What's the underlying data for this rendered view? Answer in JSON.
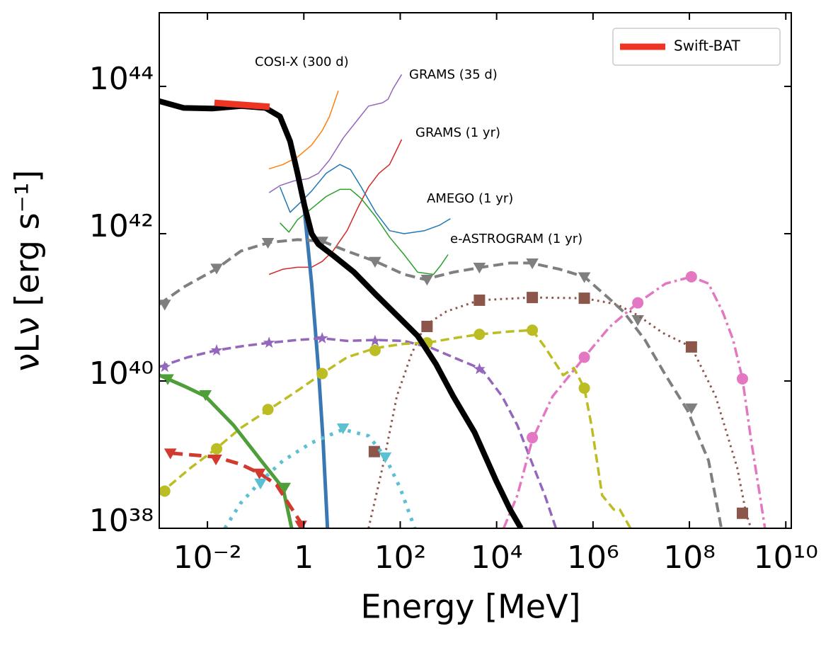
{
  "chart_data": {
    "type": "line",
    "xlabel": "Energy  [MeV]",
    "ylabel": "νLν  [erg s⁻¹]",
    "xscale": "log",
    "yscale": "log",
    "xlim": [
      0.001,
      13000000000
    ],
    "ylim": [
      1e+38,
      1e+45
    ],
    "xticks": [
      {
        "value": 0.01,
        "label": "10⁻²"
      },
      1,
      {
        "value": 100,
        "label": "10²"
      },
      {
        "value": 10000,
        "label": "10⁴"
      },
      {
        "value": 1000000,
        "label": "10⁶"
      },
      {
        "value": 100000000,
        "label": "10⁸"
      },
      {
        "value": 10000000000,
        "label": "10¹⁰"
      }
    ],
    "yticks": [
      {
        "value": 1e+38,
        "label": "10³⁸"
      },
      {
        "value": 1e+40,
        "label": "10⁴⁰"
      },
      {
        "value": 1e+42,
        "label": "10⁴²"
      },
      {
        "value": 1e+44,
        "label": "10⁴⁴"
      }
    ],
    "legend": "upper right",
    "annotations": [
      "COSI-X (300 d)",
      "GRAMS (35 d)",
      "GRAMS (1 yr)",
      "AMEGO (1 yr)",
      "e-ASTROGRAM (1 yr)"
    ],
    "series": [
      {
        "color": "#ff7f0e",
        "linestyle": "solid",
        "linewidth": 1.5,
        "x": [
          0.19,
          0.37,
          0.74,
          1.45,
          2.4,
          3.4,
          5.2
        ],
        "values": [
          7.6e+42,
          8.7e+42,
          1.1e+43,
          1.6e+43,
          2.5e+43,
          3.9e+43,
          8.7e+43
        ]
      },
      {
        "color": "#9467bd",
        "linestyle": "solid",
        "linewidth": 1.5,
        "x": [
          0.19,
          0.32,
          0.62,
          1.23,
          2.0,
          3.4,
          6.6,
          13,
          22,
          43,
          56,
          71,
          107
        ],
        "values": [
          3.6e+42,
          4.5e+42,
          5.2e+42,
          5.6e+42,
          6.6e+42,
          1e+43,
          2e+43,
          3.5e+43,
          5.4e+43,
          6e+43,
          6.7e+43,
          9.3e+43,
          1.45e+44
        ]
      },
      {
        "color": "#d62728",
        "linestyle": "solid",
        "linewidth": 1.5,
        "x": [
          0.19,
          0.37,
          0.74,
          1.45,
          2.4,
          4.0,
          7.9,
          13,
          22,
          36,
          60,
          107
        ],
        "values": [
          2.8e+41,
          3.3e+41,
          3.5e+41,
          3.5e+41,
          4.2e+41,
          5.8e+41,
          1.1e+42,
          2.2e+42,
          4.3e+42,
          6.6e+42,
          8.7e+42,
          1.9e+43
        ]
      },
      {
        "color": "#1f77b4",
        "linestyle": "solid",
        "linewidth": 1.5,
        "x": [
          0.32,
          0.52,
          0.87,
          1.45,
          2.9,
          5.6,
          9.3,
          15.5,
          31,
          60,
          120,
          320,
          650,
          1100
        ],
        "values": [
          4.3e+42,
          1.95e+42,
          2.7e+42,
          3.8e+42,
          6.6e+42,
          8.7e+42,
          7.4e+42,
          4.3e+42,
          1.95e+42,
          1.1e+42,
          1e+42,
          1.1e+42,
          1.3e+42,
          1.6e+42
        ]
      },
      {
        "color": "#2ca02c",
        "linestyle": "solid",
        "linewidth": 1.5,
        "x": [
          0.32,
          0.49,
          0.74,
          1.45,
          2.9,
          5.6,
          9.3,
          15.5,
          31,
          60,
          120,
          230,
          490,
          690,
          980
        ],
        "values": [
          1.4e+42,
          1.05e+42,
          1.55e+42,
          2.2e+42,
          3.2e+42,
          4e+42,
          4e+42,
          3e+42,
          1.7e+42,
          9e+41,
          5.2e+41,
          3e+41,
          2.8e+41,
          3.7e+41,
          5.2e+41
        ]
      },
      {
        "color": "#3a78b5",
        "linestyle": "solid",
        "linewidth": 5,
        "x": [
          0.97,
          1.45,
          2.0,
          2.5,
          3.1
        ],
        "values": [
          3e+42,
          2.1e+41,
          1.5e+40,
          1.6e+39,
          1e+38
        ]
      },
      {
        "color": "#7f7f7f",
        "linestyle": "dashed",
        "linewidth": 4,
        "x": [
          0.001,
          0.0033,
          0.015,
          0.049,
          0.19,
          0.74,
          2.4,
          7.9,
          31,
          120,
          320,
          1260,
          4900,
          19000,
          52000,
          200000,
          660000,
          2200000,
          4300000,
          12000000,
          32000000,
          91000000,
          250000000,
          460000000
        ],
        "values": [
          1.1e+41,
          1.9e+41,
          3.3e+41,
          5.8e+41,
          7.6e+41,
          8.3e+41,
          7.9e+41,
          5.8e+41,
          4.2e+41,
          2.8e+41,
          2.4e+41,
          3e+41,
          3.5e+41,
          4e+41,
          4e+41,
          3.3e+41,
          2.6e+41,
          1.3e+41,
          8.7e+40,
          3.6e+40,
          1.2e+40,
          4e+39,
          8.3e+38,
          1e+38
        ]
      },
      {
        "color": "#7f7f7f",
        "linestyle": "none",
        "marker": "v",
        "x": [
          0.0013,
          0.0155,
          0.18,
          2.4,
          30,
          360,
          4400,
          55000,
          660000,
          8500000,
          110000000
        ],
        "values": [
          1.1e+41,
          3.4e+41,
          7.6e+41,
          7.9e+41,
          4.2e+41,
          2.4e+41,
          3.5e+41,
          4e+41,
          2.6e+41,
          6.8e+40,
          4.3e+39
        ]
      },
      {
        "color": "#8c564b",
        "linestyle": "dotted",
        "linewidth": 3,
        "x": [
          22,
          43,
          85,
          170,
          320,
          910,
          4400,
          55000,
          660000,
          3100000,
          8500000,
          28000000,
          110000000,
          350000000,
          980000000,
          1500000000,
          1900000000
        ],
        "values": [
          1e+38,
          6.7e+38,
          6.2e+39,
          2.3e+40,
          5.6e+40,
          8.8e+40,
          1.25e+41,
          1.36e+41,
          1.33e+41,
          1.1e+41,
          7.8e+40,
          4.5e+40,
          2.9e+40,
          6.2e+39,
          6.7e+38,
          1.6e+38,
          1e+38
        ]
      },
      {
        "color": "#8c564b",
        "linestyle": "none",
        "marker": "s",
        "x": [
          29,
          360,
          4400,
          55000,
          660000,
          110000000,
          1260000000
        ],
        "values": [
          1.1e+39,
          5.5e+40,
          1.25e+41,
          1.36e+41,
          1.33e+41,
          2.9e+40,
          1.6e+38
        ]
      },
      {
        "color": "#9467bd",
        "linestyle": "dashed",
        "linewidth": 3.5,
        "x": [
          0.001,
          0.0039,
          0.015,
          0.058,
          0.19,
          0.74,
          2.4,
          7.9,
          31,
          120,
          450,
          1800,
          4900,
          13000,
          27000,
          52000,
          100000,
          170000
        ],
        "values": [
          1.55e+40,
          2.1e+40,
          2.6e+40,
          3e+40,
          3.3e+40,
          3.6e+40,
          3.8e+40,
          3.5e+40,
          3.6e+40,
          3.5e+40,
          2.8e+40,
          1.9e+40,
          1.45e+40,
          6.2e+39,
          2.5e+39,
          8.3e+38,
          2.8e+38,
          1e+38
        ]
      },
      {
        "color": "#9467bd",
        "linestyle": "none",
        "marker": "*",
        "x": [
          0.0013,
          0.0155,
          0.19,
          2.4,
          30,
          4400
        ],
        "values": [
          1.55e+40,
          2.6e+40,
          3.3e+40,
          3.8e+40,
          3.5e+40,
          1.45e+40
        ]
      },
      {
        "color": "#bcbd22",
        "linestyle": "dashed",
        "linewidth": 3.5,
        "x": [
          0.001,
          0.0046,
          0.015,
          0.049,
          0.19,
          0.74,
          2.4,
          7.9,
          31,
          120,
          360,
          1260,
          4400,
          19000,
          55000,
          100000,
          240000,
          400000,
          660000,
          930000,
          1550000,
          2700000,
          3600000,
          6000000
        ],
        "values": [
          2.9e+38,
          6.7e+38,
          1.2e+39,
          2.3e+39,
          4.1e+39,
          7.4e+39,
          1.26e+40,
          2.1e+40,
          2.8e+40,
          3.2e+40,
          3.3e+40,
          3.8e+40,
          4.3e+40,
          4.7e+40,
          4.9e+40,
          2.9e+40,
          1.2e+40,
          1.5e+40,
          8e+39,
          2.5e+39,
          2.8e+38,
          1.8e+38,
          1.8e+38,
          1e+38
        ]
      },
      {
        "color": "#bcbd22",
        "linestyle": "none",
        "marker": "o",
        "x": [
          0.0013,
          0.0155,
          0.18,
          2.4,
          30,
          360,
          4400,
          55000,
          660000
        ],
        "values": [
          3.2e+38,
          1.2e+39,
          4.1e+39,
          1.26e+40,
          2.6e+40,
          3.3e+40,
          4.3e+40,
          4.9e+40,
          8e+39
        ]
      },
      {
        "color": "#e377c2",
        "linestyle": "dashdot",
        "linewidth": 3.5,
        "x": [
          14000,
          27000,
          55000,
          145000,
          660000,
          2200000,
          8500000,
          32000000,
          110000000,
          250000000,
          490000000,
          810000000,
          1260000000,
          1900000000,
          2900000000,
          3700000000
        ],
        "values": [
          1e+38,
          2.8e+38,
          1.6e+39,
          6.2e+39,
          2.1e+40,
          5.4e+40,
          1.15e+41,
          2.1e+41,
          2.6e+41,
          2.1e+41,
          8.7e+40,
          3.6e+40,
          1.07e+40,
          1.6e+39,
          2.8e+38,
          1e+38
        ]
      },
      {
        "color": "#e377c2",
        "linestyle": "none",
        "marker": "o",
        "x": [
          55000,
          660000,
          8500000,
          110000000,
          1260000000
        ],
        "values": [
          1.7e+39,
          2.1e+40,
          1.15e+41,
          2.6e+41,
          1.07e+40
        ]
      },
      {
        "color": "#4e9e3a",
        "linestyle": "solid",
        "linewidth": 5,
        "x": [
          0.001,
          0.0033,
          0.0091,
          0.035,
          0.13,
          0.37,
          0.56
        ],
        "values": [
          1.2e+40,
          8.5e+39,
          6.2e+39,
          2.5e+39,
          8.3e+38,
          3.5e+38,
          1e+38
        ]
      },
      {
        "color": "#4e9e3a",
        "linestyle": "none",
        "marker": "v",
        "x": [
          0.0015,
          0.0091,
          0.4
        ],
        "values": [
          1.07e+40,
          6.5e+39,
          3.6e+38
        ]
      },
      {
        "color": "#d03a2f",
        "linestyle": "dashed",
        "linewidth": 5,
        "x": [
          0.0017,
          0.015,
          0.049,
          0.12,
          0.27,
          0.52,
          1.03
        ],
        "values": [
          1.05e+39,
          9.3e+38,
          7.4e+38,
          5.6e+38,
          3.9e+38,
          2e+38,
          1e+38
        ]
      },
      {
        "color": "#d03a2f",
        "linestyle": "none",
        "marker": "v",
        "x": [
          0.0017,
          0.015,
          0.12,
          0.87
        ],
        "values": [
          1.05e+39,
          8.7e+38,
          5.6e+38,
          1.1e+38
        ]
      },
      {
        "color": "#5bc0d1",
        "linestyle": "dotted",
        "linewidth": 5,
        "x": [
          0.023,
          0.049,
          0.126,
          0.37,
          1.45,
          6.5,
          22,
          49,
          100,
          200
        ],
        "values": [
          1e+38,
          2.2e+38,
          4.3e+38,
          8.3e+38,
          1.45e+39,
          2.2e+39,
          1.8e+39,
          9.3e+38,
          3.5e+38,
          1e+38
        ]
      },
      {
        "color": "#5bc0d1",
        "linestyle": "none",
        "marker": "v",
        "x": [
          0.126,
          6.5,
          49
        ],
        "values": [
          4.1e+38,
          2.3e+39,
          9.3e+38
        ]
      },
      {
        "color": "#000000",
        "linestyle": "solid",
        "linewidth": 8,
        "x": [
          0.001,
          0.0032,
          0.0126,
          0.05,
          0.16,
          0.32,
          0.52,
          0.74,
          1.03,
          1.45,
          2.0,
          4.0,
          11,
          31,
          85,
          230,
          550,
          1260,
          3500,
          9800,
          19000,
          32000
        ],
        "values": [
          6.3e+43,
          5.1e+43,
          5e+43,
          5.4e+43,
          5.1e+43,
          3.9e+43,
          1.8e+43,
          6.6e+42,
          2.4e+42,
          1e+42,
          7.2e+41,
          5.1e+41,
          3e+41,
          1.5e+41,
          7.8e+40,
          4.1e+40,
          1.7e+40,
          6.2e+39,
          2e+39,
          4.4e+38,
          1.8e+38,
          1e+38
        ]
      },
      {
        "name": "Swift-BAT",
        "color": "#ee3524",
        "linestyle": "solid",
        "linewidth": 9,
        "x": [
          0.014,
          0.195
        ],
        "values": [
          6e+43,
          5.3e+43
        ]
      }
    ]
  }
}
